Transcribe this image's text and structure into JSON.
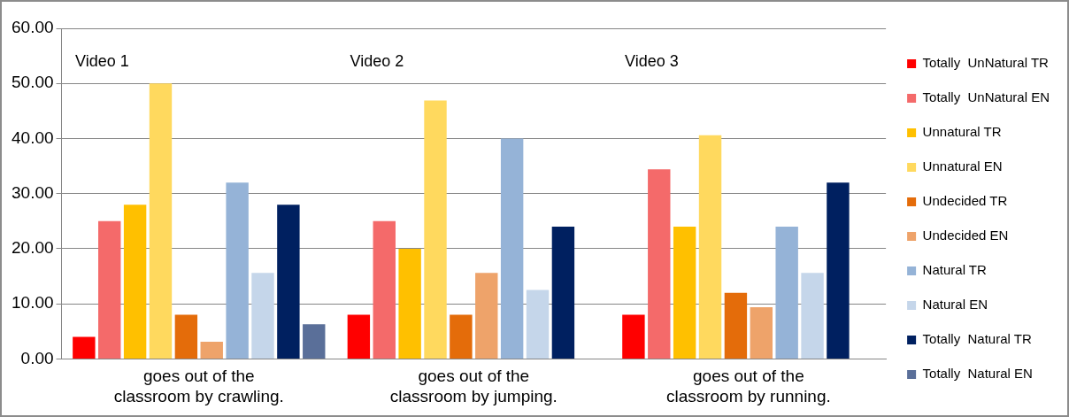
{
  "chart_data": {
    "type": "bar",
    "categories": [
      "goes out of the classroom by crawling.",
      "goes out of the classroom by jumping.",
      "goes out of the classroom by running."
    ],
    "series": [
      {
        "name": "Totally  UnNatural TR",
        "color": "#ff0000",
        "values": [
          4,
          8,
          8
        ]
      },
      {
        "name": "Totally  UnNatural EN",
        "color": "#f46a6a",
        "values": [
          25,
          25,
          34.4
        ]
      },
      {
        "name": "Unnatural TR",
        "color": "#ffc000",
        "values": [
          28,
          20,
          24
        ]
      },
      {
        "name": "Unnatural EN",
        "color": "#ffd95e",
        "values": [
          50,
          46.9,
          40.6
        ]
      },
      {
        "name": "Undecided TR",
        "color": "#e46c0a",
        "values": [
          8,
          8,
          12
        ]
      },
      {
        "name": "Undecided EN",
        "color": "#eea36a",
        "values": [
          3.1,
          15.6,
          9.4
        ]
      },
      {
        "name": "Natural TR",
        "color": "#95b3d7",
        "values": [
          32,
          40,
          24
        ]
      },
      {
        "name": "Natural EN",
        "color": "#c5d6ea",
        "values": [
          15.6,
          12.5,
          15.6
        ]
      },
      {
        "name": "Totally  Natural TR",
        "color": "#002060",
        "values": [
          28,
          24,
          32
        ]
      },
      {
        "name": "Totally  Natural EN",
        "color": "#5a6f99",
        "values": [
          6.3,
          0,
          0
        ]
      }
    ],
    "ylim": [
      0,
      60
    ],
    "yticks": [
      {
        "value": 0,
        "label": "0.00"
      },
      {
        "value": 10,
        "label": "10.00"
      },
      {
        "value": 20,
        "label": "20.00"
      },
      {
        "value": 30,
        "label": "30.00"
      },
      {
        "value": 40,
        "label": "40.00"
      },
      {
        "value": 50,
        "label": "50.00"
      },
      {
        "value": 60,
        "label": "60.00"
      }
    ],
    "grid": "y",
    "legend": "right",
    "annotations": [
      "Video 1",
      "Video 2",
      "Video 3"
    ]
  }
}
